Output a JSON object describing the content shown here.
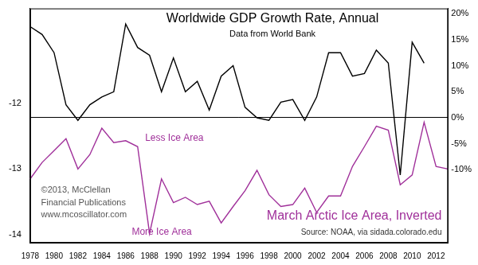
{
  "chart_data": {
    "type": "line",
    "title": "Worldwide GDP Growth Rate, Annual",
    "subtitle": "Data from World Bank",
    "annotations": [
      "Less Ice Area",
      "More Ice Area",
      "©2013, McClellan",
      "Financial Publications",
      "www.mcoscillator.com",
      "Source: NOAA, via sidada.colorado.edu"
    ],
    "categories": [
      1978,
      null,
      1980,
      null,
      1982,
      null,
      1984,
      null,
      1986,
      null,
      1988,
      null,
      1990,
      null,
      1992,
      null,
      1994,
      null,
      1996,
      null,
      1998,
      null,
      2000,
      null,
      2002,
      null,
      2004,
      null,
      2006,
      null,
      2008,
      null,
      2010,
      null,
      2012,
      null
    ],
    "series": [
      {
        "color": "#000000",
        "axis": "y2",
        "marker": "none",
        "line_style": "solid",
        "values": [
          17.5,
          16,
          12.5,
          2.5,
          -0.5,
          2.5,
          4,
          5,
          18,
          13.5,
          12,
          5,
          11.5,
          5,
          7,
          1.5,
          8,
          10,
          2,
          0,
          -0.5,
          3,
          3.5,
          -0.5,
          4,
          12.5,
          12.5,
          8,
          8.5,
          13,
          10.5,
          -11,
          14.5,
          10.5,
          null,
          null
        ]
      },
      {
        "name": "March Arctic Ice Area, Inverted",
        "color": "#a0309a",
        "axis": "y",
        "marker": "none",
        "line_style": "solid",
        "values": [
          -13.15,
          -12.9,
          -12.72,
          -12.54,
          -13.0,
          -12.78,
          -12.38,
          -12.6,
          -12.57,
          -12.66,
          -13.98,
          -13.15,
          -13.51,
          -13.43,
          -13.54,
          -13.49,
          -13.82,
          -13.57,
          -13.33,
          -13.02,
          -13.39,
          -13.57,
          -13.54,
          -13.29,
          -13.66,
          -13.41,
          -13.41,
          -12.96,
          -12.66,
          -12.35,
          -12.41,
          -13.24,
          -13.09,
          -12.29,
          -12.96,
          -13.0
        ]
      }
    ],
    "ylim": [
      -14.12,
      -10.56
    ],
    "yticks": [
      -14,
      -13,
      -12
    ],
    "y2lim": [
      -24,
      21
    ],
    "y2ticks": [
      {
        "value": -10,
        "label": "-10%"
      },
      {
        "value": -5,
        "label": "-5%"
      },
      {
        "value": 0,
        "label": "0%"
      },
      {
        "value": 5,
        "label": "5%"
      },
      {
        "value": 10,
        "label": "10%"
      },
      {
        "value": 15,
        "label": "15%"
      },
      {
        "value": 20,
        "label": "20%"
      }
    ]
  }
}
